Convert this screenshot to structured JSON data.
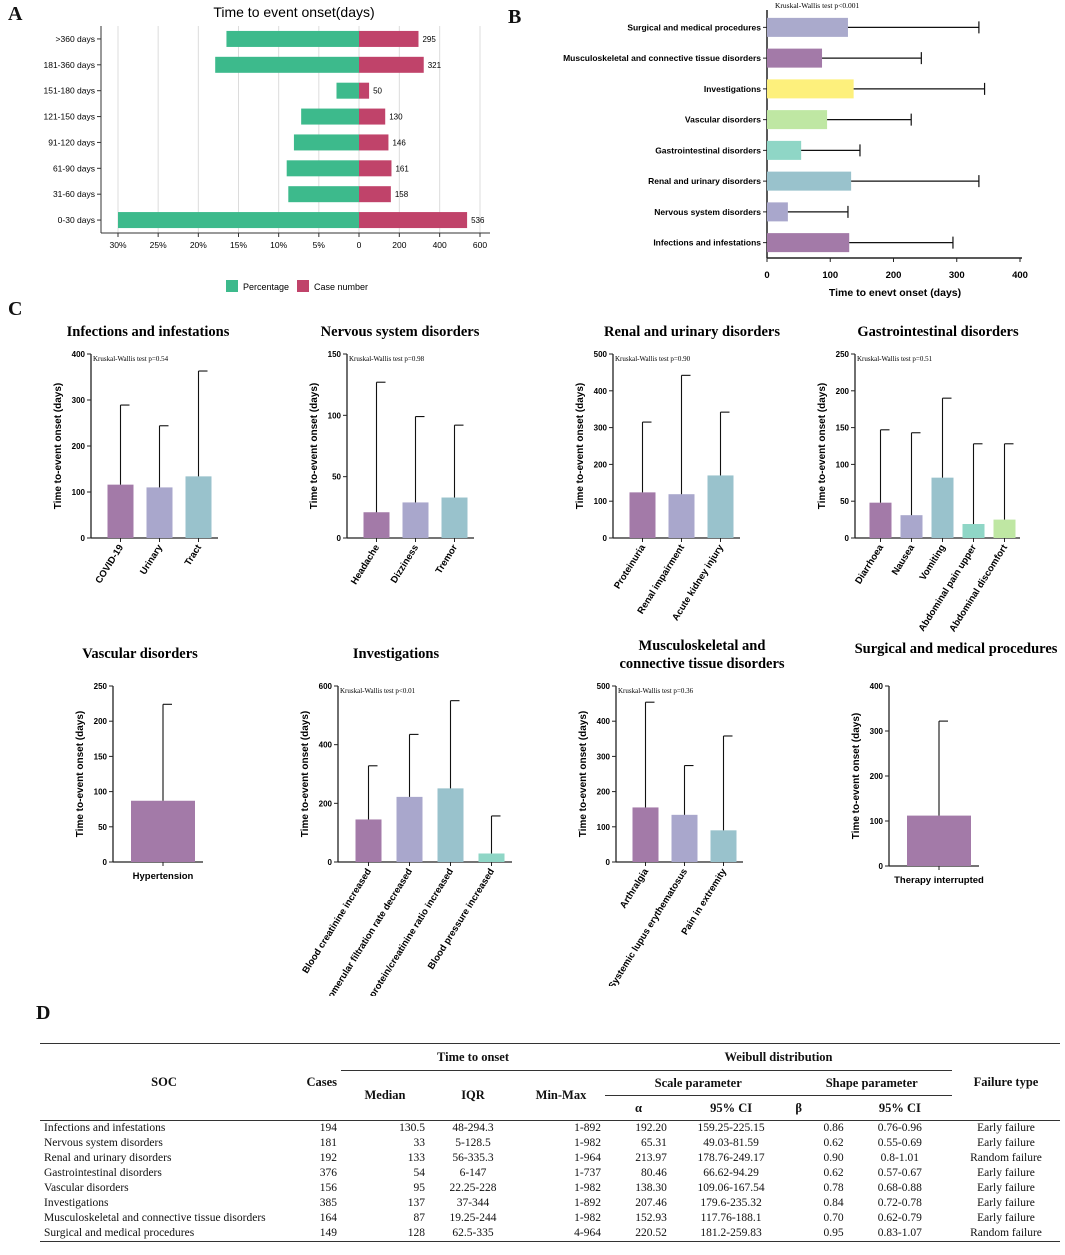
{
  "panel_labels": {
    "a": "A",
    "b": "B",
    "c": "C",
    "d": "D"
  },
  "panelA": {
    "title": "Time to event onset(days)",
    "categories": [
      ">360 days",
      "181-360 days",
      "151-180 days",
      "121-150 days",
      "91-120 days",
      "61-90 days",
      "31-60 days",
      "0-30 days"
    ],
    "percentage": [
      16.5,
      17.9,
      2.8,
      7.2,
      8.1,
      9.0,
      8.8,
      30.0
    ],
    "case_number": [
      295,
      321,
      50,
      130,
      146,
      161,
      158,
      536
    ],
    "left_ticks": [
      "30%",
      "25%",
      "20%",
      "15%",
      "10%",
      "5%",
      "0"
    ],
    "right_ticks": [
      "0",
      "200",
      "400",
      "600"
    ],
    "legend": {
      "percentage": "Percentage",
      "case_number": "Case number"
    },
    "colors": {
      "percentage": "#3dba8c",
      "case_number": "#c0436a"
    }
  },
  "panelB": {
    "annotation": "Kruskal-Wallis test p<0.001",
    "xlabel": "Time to enevt onset (days)",
    "xticks": [
      "0",
      "100",
      "200",
      "300",
      "400"
    ],
    "categories": [
      "Surgical and medical procedures",
      "Musculoskeletal and connective tissue disorders",
      "Investigations",
      "Vascular disorders",
      "Gastrointestinal disorders",
      "Renal and urinary disorders",
      "Nervous system disorders",
      "Infections and infestations"
    ],
    "means": [
      128,
      87,
      137,
      95,
      54,
      133,
      33,
      130
    ],
    "errors": [
      335,
      244,
      344,
      228,
      147,
      335,
      128,
      294
    ],
    "colors": [
      "#aaaacc",
      "#a37aa8",
      "#fdf07c",
      "#bfe7a3",
      "#8fd6c6",
      "#99c2cc",
      "#a9a7cc",
      "#a37aa8"
    ]
  },
  "panelC": {
    "ylabel": "Time to-event onset (days)",
    "subplots": [
      {
        "title": "Infections and infestations",
        "annotation": "Kruskal-Wallis test p=0.54",
        "yticks": [
          "0",
          "100",
          "200",
          "300",
          "400"
        ],
        "ymax": 400,
        "labels": [
          "COVID-19",
          "Urinary",
          "Tract"
        ],
        "means": [
          116,
          110,
          134
        ],
        "errors": [
          289,
          244,
          363
        ]
      },
      {
        "title": "Nervous system disorders",
        "annotation": "Kruskal-Wallis test p=0.98",
        "yticks": [
          "0",
          "50",
          "100",
          "150"
        ],
        "ymax": 150,
        "labels": [
          "Headache",
          "Dizziness",
          "Tremor"
        ],
        "means": [
          21,
          29,
          33
        ],
        "errors": [
          127,
          99,
          92
        ]
      },
      {
        "title": "Renal and urinary disorders",
        "annotation": "Kruskal-Wallis test p=0.90",
        "yticks": [
          "0",
          "100",
          "200",
          "300",
          "400",
          "500"
        ],
        "ymax": 500,
        "labels": [
          "Proteinuria",
          "Renal impairment",
          "Acute kidney injury"
        ],
        "means": [
          124,
          119,
          170
        ],
        "errors": [
          315,
          442,
          342
        ]
      },
      {
        "title": "Gastrointestinal disorders",
        "annotation": "Kruskal-Wallis test p=0.51",
        "yticks": [
          "0",
          "50",
          "100",
          "150",
          "200",
          "250"
        ],
        "ymax": 250,
        "labels": [
          "Diarrhoea",
          "Nausea",
          "Vomiting",
          "Abdominal pain upper",
          "Abdominal discomfort"
        ],
        "means": [
          48,
          31,
          82,
          19,
          25
        ],
        "errors": [
          147,
          143,
          190,
          128,
          128
        ]
      },
      {
        "title": "Vascular disorders",
        "annotation": "",
        "yticks": [
          "0",
          "50",
          "100",
          "150",
          "200",
          "250"
        ],
        "ymax": 250,
        "labels": [
          "Hypertension"
        ],
        "means": [
          87
        ],
        "errors": [
          224
        ]
      },
      {
        "title": "Investigations",
        "annotation": "Kruskal-Wallis test p<0.01",
        "yticks": [
          "0",
          "200",
          "400",
          "600"
        ],
        "ymax": 600,
        "labels": [
          "Blood creatinine increased",
          "Glomerular filtration rate decreased",
          "Urine protein/creatinine ratio increased",
          "Blood pressure increased"
        ],
        "means": [
          145,
          222,
          251,
          29
        ],
        "errors": [
          328,
          435,
          550,
          157
        ]
      },
      {
        "title": "Musculoskeletal and connective tissue disorders",
        "annotation": "Kruskal-Wallis test p=0.36",
        "yticks": [
          "0",
          "100",
          "200",
          "300",
          "400",
          "500"
        ],
        "ymax": 500,
        "labels": [
          "Arthralgia",
          "Systemic lupus erythematosus",
          "Pain in extremity"
        ],
        "means": [
          155,
          134,
          90
        ],
        "errors": [
          454,
          274,
          358
        ]
      },
      {
        "title": "Surgical and medical procedures",
        "annotation": "",
        "yticks": [
          "0",
          "100",
          "200",
          "300",
          "400"
        ],
        "ymax": 400,
        "labels": [
          "Therapy interrupted"
        ],
        "means": [
          112
        ],
        "errors": [
          322
        ]
      }
    ]
  },
  "tableD": {
    "headers": {
      "soc": "SOC",
      "cases": "Cases",
      "time_to_onset": "Time to onset",
      "weibull": "Weibull distribution",
      "median": "Median",
      "iqr": "IQR",
      "minmax": "Min-Max",
      "scale": "Scale parameter",
      "shape": "Shape parameter",
      "alpha": "α",
      "ci1": "95% CI",
      "beta": "β",
      "ci2": "95% CI",
      "failure": "Failure type"
    },
    "rows": [
      [
        "Infections and infestations",
        "194",
        "130.5",
        "48-294.3",
        "1-892",
        "192.20",
        "159.25-225.15",
        "0.86",
        "0.76-0.96",
        "Early failure"
      ],
      [
        "Nervous system disorders",
        "181",
        "33",
        "5-128.5",
        "1-982",
        "65.31",
        "49.03-81.59",
        "0.62",
        "0.55-0.69",
        "Early failure"
      ],
      [
        "Renal and urinary disorders",
        "192",
        "133",
        "56-335.3",
        "1-964",
        "213.97",
        "178.76-249.17",
        "0.90",
        "0.8-1.01",
        "Random failure"
      ],
      [
        "Gastrointestinal disorders",
        "376",
        "54",
        "6-147",
        "1-737",
        "80.46",
        "66.62-94.29",
        "0.62",
        "0.57-0.67",
        "Early failure"
      ],
      [
        "Vascular disorders",
        "156",
        "95",
        "22.25-228",
        "1-982",
        "138.30",
        "109.06-167.54",
        "0.78",
        "0.68-0.88",
        "Early failure"
      ],
      [
        "Investigations",
        "385",
        "137",
        "37-344",
        "1-892",
        "207.46",
        "179.6-235.32",
        "0.84",
        "0.72-0.78",
        "Early failure"
      ],
      [
        "Musculoskeletal and connective tissue disorders",
        "164",
        "87",
        "19.25-244",
        "1-982",
        "152.93",
        "117.76-188.1",
        "0.70",
        "0.62-0.79",
        "Early failure"
      ],
      [
        "Surgical and medical procedures",
        "149",
        "128",
        "62.5-335",
        "4-964",
        "220.52",
        "181.2-259.83",
        "0.95",
        "0.83-1.07",
        "Random failure"
      ]
    ]
  },
  "chart_data": [
    {
      "type": "bar",
      "title": "Time to event onset(days)",
      "categories": [
        ">360 days",
        "181-360 days",
        "151-180 days",
        "121-150 days",
        "91-120 days",
        "61-90 days",
        "31-60 days",
        "0-30 days"
      ],
      "series": [
        {
          "name": "Percentage",
          "values": [
            16.5,
            17.9,
            2.8,
            7.2,
            8.1,
            9.0,
            8.8,
            30.0
          ]
        },
        {
          "name": "Case number",
          "values": [
            295,
            321,
            50,
            130,
            146,
            161,
            158,
            536
          ]
        }
      ]
    },
    {
      "type": "bar",
      "xlabel": "Time to enevt onset (days)",
      "xlim": [
        0,
        400
      ],
      "categories": [
        "Surgical and medical procedures",
        "Musculoskeletal and connective tissue disorders",
        "Investigations",
        "Vascular disorders",
        "Gastrointestinal disorders",
        "Renal and urinary disorders",
        "Nervous system disorders",
        "Infections and infestations"
      ],
      "values": [
        128,
        87,
        137,
        95,
        54,
        133,
        33,
        130
      ]
    }
  ]
}
